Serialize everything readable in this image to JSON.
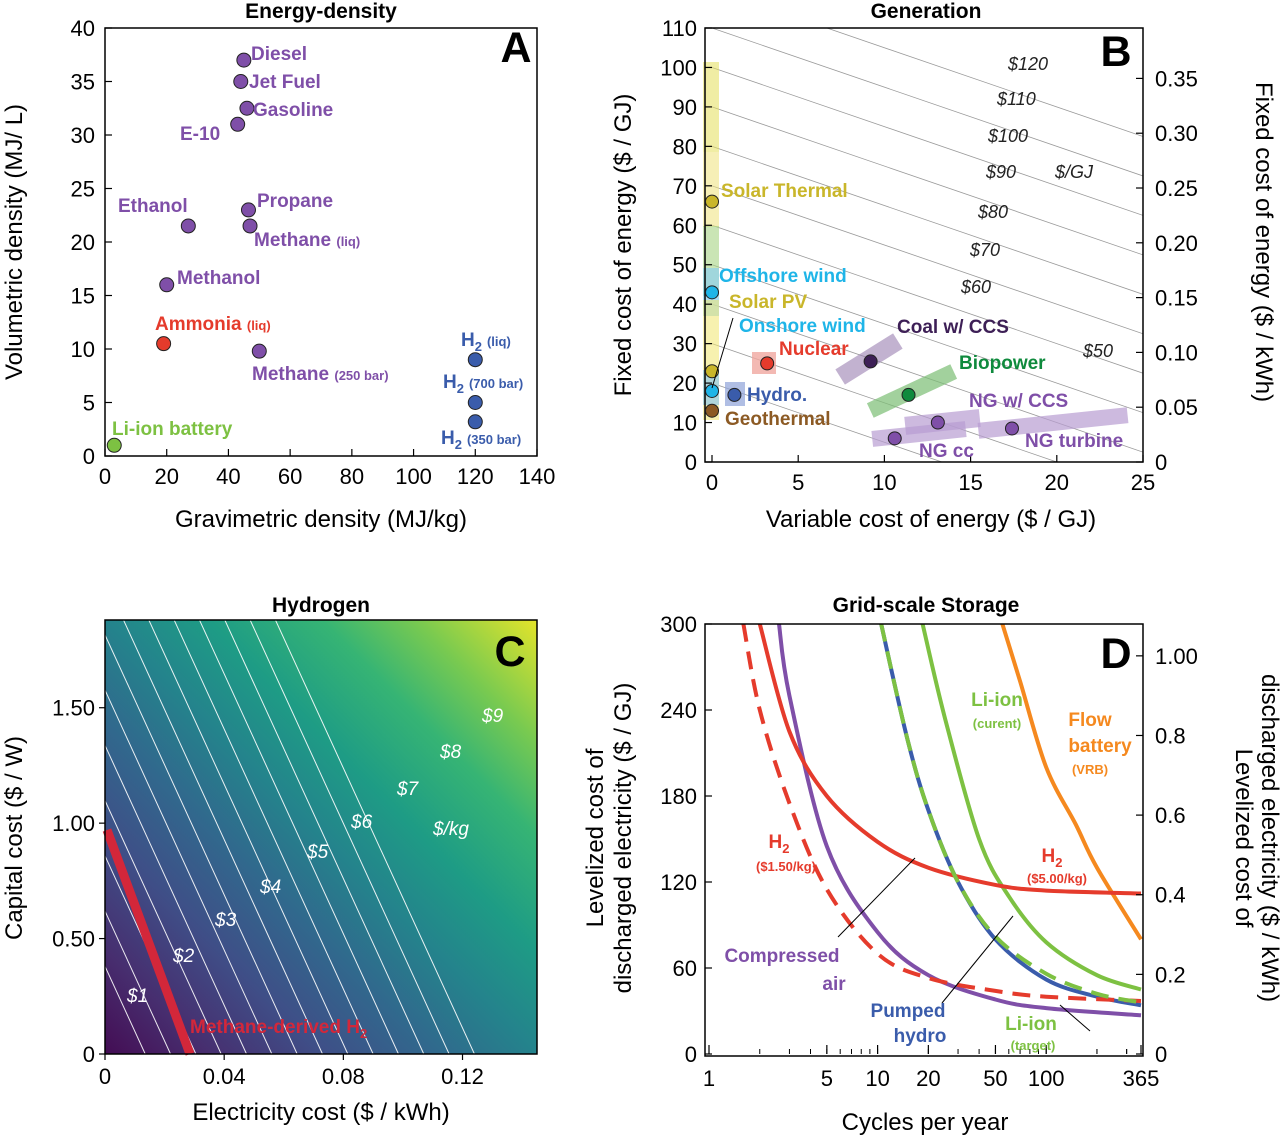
{
  "figure_labels": {
    "A": "A",
    "B": "B",
    "C": "C",
    "D": "D"
  },
  "colors": {
    "purple": "#7f4fa8",
    "red": "#e53b2c",
    "green": "#7dc142",
    "blue": "#3a5cab",
    "cyan": "#1fb5e8",
    "yellow": "#c9b62a",
    "brown": "#8c5a24",
    "dark_purple": "#3d1f56",
    "dark_green": "#0f8a3d",
    "orange": "#f5891f",
    "pink_red": "#d3273a"
  },
  "chart_data": [
    {
      "panel": "A",
      "type": "scatter",
      "title": "Energy-density",
      "xlabel": "Gravimetric density (MJ/kg)",
      "ylabel": "Volumetric density (MJ/ L)",
      "xlim": [
        0,
        140
      ],
      "ylim": [
        0,
        40
      ],
      "xticks": [
        "0",
        "20",
        "40",
        "60",
        "80",
        "100",
        "120",
        "140"
      ],
      "yticks": [
        "0",
        "5",
        "10",
        "15",
        "20",
        "25",
        "30",
        "35",
        "40"
      ],
      "points": [
        {
          "label": "Diesel",
          "x": 45,
          "y": 37,
          "color": "#7f4fa8"
        },
        {
          "label": "Jet Fuel",
          "x": 44,
          "y": 35,
          "color": "#7f4fa8"
        },
        {
          "label": "Gasoline",
          "x": 46,
          "y": 32.5,
          "color": "#7f4fa8"
        },
        {
          "label": "E-10",
          "x": 43,
          "y": 31,
          "color": "#7f4fa8"
        },
        {
          "label": "Ethanol",
          "x": 27,
          "y": 21.5,
          "color": "#7f4fa8"
        },
        {
          "label": "Propane",
          "x": 46.5,
          "y": 23,
          "color": "#7f4fa8"
        },
        {
          "label": "Methane",
          "sub": "(liq)",
          "x": 47,
          "y": 21.5,
          "color": "#7f4fa8"
        },
        {
          "label": "Methanol",
          "x": 20,
          "y": 16,
          "color": "#7f4fa8"
        },
        {
          "label": "Ammonia",
          "sub": "(liq)",
          "x": 19,
          "y": 10.5,
          "color": "#e53b2c"
        },
        {
          "label": "Methane",
          "sub": "(250 bar)",
          "x": 50,
          "y": 9.8,
          "color": "#7f4fa8"
        },
        {
          "label": "H",
          "sub2": "2",
          "sub": "(liq)",
          "x": 120,
          "y": 9,
          "color": "#3a5cab"
        },
        {
          "label": "H",
          "sub2": "2",
          "sub": "(700 bar)",
          "x": 120,
          "y": 5,
          "color": "#3a5cab"
        },
        {
          "label": "H",
          "sub2": "2",
          "sub": "(350 bar)",
          "x": 120,
          "y": 3.2,
          "color": "#3a5cab"
        },
        {
          "label": "Li-ion battery",
          "x": 3,
          "y": 1,
          "color": "#7dc142"
        }
      ]
    },
    {
      "panel": "B",
      "type": "scatter",
      "title": "Generation",
      "xlabel": "Variable cost of energy ($ / GJ)",
      "ylabel": "Fixed cost of energy ($ / GJ)",
      "ylabel_right": "Fixed cost of energy ($ / kWh)",
      "xlim": [
        0,
        25
      ],
      "ylim": [
        0,
        110
      ],
      "xticks": [
        "0",
        "5",
        "10",
        "15",
        "20",
        "25"
      ],
      "yticks": [
        "0",
        "10",
        "20",
        "30",
        "40",
        "50",
        "60",
        "70",
        "80",
        "90",
        "100",
        "110"
      ],
      "yticks_right": [
        "0",
        "0.05",
        "0.10",
        "0.15",
        "0.20",
        "0.25",
        "0.30",
        "0.35"
      ],
      "isolines": [
        "$50",
        "$60",
        "$70",
        "$80",
        "$90",
        "$100",
        "$110",
        "$120"
      ],
      "isoline_unit": "$/GJ",
      "points": [
        {
          "label": "Solar Thermal",
          "x": 0,
          "y": 66,
          "color": "#c9b62a"
        },
        {
          "label": "Offshore wind",
          "x": 0,
          "y": 43,
          "color": "#1fb5e8"
        },
        {
          "label": "Solar PV",
          "x": 0,
          "y": 23,
          "color": "#c9b62a"
        },
        {
          "label": "Onshore wind",
          "x": 0,
          "y": 18,
          "color": "#1fb5e8"
        },
        {
          "label": "Geothermal",
          "x": 0,
          "y": 13,
          "color": "#8c5a24"
        },
        {
          "label": "Hydro.",
          "x": 1.3,
          "y": 17,
          "color": "#3a5cab"
        },
        {
          "label": "Nuclear",
          "x": 3.2,
          "y": 25,
          "color": "#e53b2c"
        },
        {
          "label": "Coal w/ CCS",
          "x": 9.2,
          "y": 25.5,
          "color": "#3d1f56"
        },
        {
          "label": "Biopower",
          "x": 11.4,
          "y": 17,
          "color": "#0f8a3d"
        },
        {
          "label": "NG w/ CCS",
          "x": 13.1,
          "y": 10,
          "color": "#7f4fa8"
        },
        {
          "label": "NG cc",
          "x": 10.6,
          "y": 6,
          "color": "#7f4fa8"
        },
        {
          "label": "NG turbine",
          "x": 17.4,
          "y": 8.5,
          "color": "#7f4fa8"
        }
      ]
    },
    {
      "panel": "C",
      "type": "heatmap",
      "title": "Hydrogen",
      "xlabel": "Electricity cost ($ / kWh)",
      "ylabel": "Capital cost ($ / W)",
      "xlim": [
        0,
        0.145
      ],
      "ylim": [
        0,
        1.88
      ],
      "xticks": [
        "0",
        "0.04",
        "0.08",
        "0.12"
      ],
      "yticks": [
        "0",
        "0.50",
        "1.00",
        "1.50"
      ],
      "contours": [
        "$1",
        "$2",
        "$3",
        "$4",
        "$5",
        "$6",
        "$7",
        "$8",
        "$9"
      ],
      "contour_unit": "$/kg",
      "annotation": "Methane-derived H",
      "annotation_sub": "2"
    },
    {
      "panel": "D",
      "type": "line",
      "title": "Grid-scale Storage",
      "xlabel": "Cycles per year",
      "ylabel": "Levelized cost of discharged electricity ($ / GJ)",
      "ylabel_line1": "Levelized cost of",
      "ylabel_line2": "discharged electricity ($ / GJ)",
      "ylabel_right_line1": "Levelized cost of",
      "ylabel_right_line2": "discharged electricity ($ / kWh)",
      "x_scale": "log",
      "xlim": [
        1,
        365
      ],
      "ylim": [
        0,
        300
      ],
      "xticks": [
        "1",
        "5",
        "10",
        "20",
        "50",
        "100",
        "365"
      ],
      "yticks": [
        "0",
        "60",
        "120",
        "180",
        "240",
        "300"
      ],
      "yticks_right": [
        "0",
        "0.2",
        "0.4",
        "0.6",
        "0.8",
        "1.00"
      ],
      "series": [
        {
          "name": "Compressed air",
          "color": "#7f4fa8",
          "style": "solid",
          "points": [
            [
              2.6,
              300
            ],
            [
              3,
              250
            ],
            [
              5,
              145
            ],
            [
              10,
              85
            ],
            [
              20,
              55
            ],
            [
              50,
              38
            ],
            [
              100,
              32
            ],
            [
              365,
              27
            ]
          ]
        },
        {
          "name": "Pumped hydro",
          "color": "#3a5cab",
          "style": "solid",
          "points": [
            [
              10.5,
              300
            ],
            [
              15,
              220
            ],
            [
              20,
              170
            ],
            [
              30,
              120
            ],
            [
              50,
              80
            ],
            [
              100,
              52
            ],
            [
              200,
              40
            ],
            [
              365,
              34
            ]
          ]
        },
        {
          "name": "Li-ion (curent)",
          "color": "#7dc142",
          "style": "solid",
          "points": [
            [
              18.5,
              300
            ],
            [
              25,
              235
            ],
            [
              40,
              150
            ],
            [
              60,
              110
            ],
            [
              100,
              78
            ],
            [
              200,
              55
            ],
            [
              365,
              45
            ]
          ]
        },
        {
          "name": "Li-ion (target)",
          "color": "#7dc142",
          "style": "dashed",
          "points": [
            [
              10.5,
              300
            ],
            [
              15,
              220
            ],
            [
              20,
              170
            ],
            [
              30,
              120
            ],
            [
              50,
              82
            ],
            [
              100,
              56
            ],
            [
              200,
              42
            ],
            [
              365,
              36
            ]
          ]
        },
        {
          "name": "Flow battery (VRB)",
          "color": "#f5891f",
          "style": "solid",
          "points": [
            [
              55,
              300
            ],
            [
              70,
              260
            ],
            [
              100,
              200
            ],
            [
              150,
              160
            ],
            [
              200,
              130
            ],
            [
              365,
              80
            ]
          ]
        },
        {
          "name": "H2 ($5.00/kg)",
          "color": "#e53b2c",
          "style": "solid",
          "points": [
            [
              2,
              300
            ],
            [
              3,
              225
            ],
            [
              5,
              180
            ],
            [
              10,
              148
            ],
            [
              20,
              130
            ],
            [
              50,
              118
            ],
            [
              100,
              114
            ],
            [
              365,
              112
            ]
          ]
        },
        {
          "name": "H2 ($1.50/kg)",
          "color": "#e53b2c",
          "style": "dashed",
          "points": [
            [
              1.6,
              300
            ],
            [
              2,
              240
            ],
            [
              3,
              175
            ],
            [
              5,
              115
            ],
            [
              10,
              70
            ],
            [
              20,
              53
            ],
            [
              50,
              44
            ],
            [
              100,
              40
            ],
            [
              365,
              37
            ]
          ]
        }
      ],
      "labels": {
        "compressed": [
          "Compressed",
          "air"
        ],
        "pumped": [
          "Pumped",
          "hydro"
        ],
        "li_cur": [
          "Li-ion",
          "(curent)"
        ],
        "li_tgt": [
          "Li-ion",
          "(target)"
        ],
        "flow": [
          "Flow",
          "battery",
          "(VRB)"
        ],
        "h2_high": [
          "H",
          "2",
          "($5.00/kg)"
        ],
        "h2_low": [
          "H",
          "2",
          "($1.50/kg)"
        ]
      }
    }
  ]
}
